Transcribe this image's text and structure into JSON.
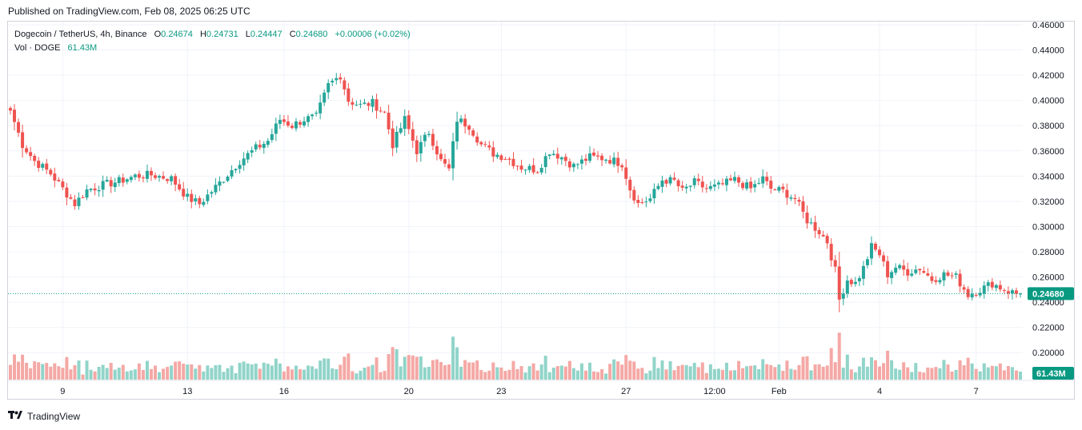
{
  "published": "Published on TradingView.com, Feb 08, 2025 06:25 UTC",
  "legend": {
    "symbol": "Dogecoin / TetherUS, 4h, Binance",
    "open_label": "O",
    "open": "0.24674",
    "high_label": "H",
    "high": "0.24731",
    "low_label": "L",
    "low": "0.24447",
    "close_label": "C",
    "close": "0.24680",
    "change": "+0.00006 (+0.02%)",
    "vol_label": "Vol · DOGE",
    "vol_value": "61.43M"
  },
  "brand": "TradingView",
  "colors": {
    "up": "#26a69a",
    "down": "#ef5350",
    "up_vol": "#91d4c9",
    "down_vol": "#f4a8a5",
    "grid": "#f0f3fa",
    "price_tag": "#089981"
  },
  "chart_data": {
    "type": "candlestick",
    "title": "Dogecoin / TetherUS, 4h, Binance",
    "ylim": [
      0.19,
      0.46
    ],
    "yticks": [
      "0.46000",
      "0.44000",
      "0.42000",
      "0.40000",
      "0.38000",
      "0.36000",
      "0.34000",
      "0.32000",
      "0.30000",
      "0.28000",
      "0.26000",
      "0.24000",
      "0.22000",
      "0.20000"
    ],
    "xticks": [
      {
        "label": "9",
        "index": 13
      },
      {
        "label": "13",
        "index": 44
      },
      {
        "label": "16",
        "index": 68
      },
      {
        "label": "20",
        "index": 99
      },
      {
        "label": "23",
        "index": 122
      },
      {
        "label": "27",
        "index": 153
      },
      {
        "label": "12:00",
        "index": 175
      },
      {
        "label": "Feb",
        "index": 191
      },
      {
        "label": "4",
        "index": 216
      },
      {
        "label": "7",
        "index": 240
      }
    ],
    "last_price": "0.24680",
    "last_volume": "61.43M",
    "anchors": [
      [
        0,
        0.392
      ],
      [
        3,
        0.365
      ],
      [
        6,
        0.352
      ],
      [
        10,
        0.342
      ],
      [
        13,
        0.33
      ],
      [
        16,
        0.318
      ],
      [
        19,
        0.329
      ],
      [
        23,
        0.333
      ],
      [
        27,
        0.336
      ],
      [
        31,
        0.34
      ],
      [
        35,
        0.341
      ],
      [
        40,
        0.338
      ],
      [
        44,
        0.323
      ],
      [
        47,
        0.318
      ],
      [
        50,
        0.328
      ],
      [
        53,
        0.338
      ],
      [
        57,
        0.352
      ],
      [
        61,
        0.362
      ],
      [
        64,
        0.368
      ],
      [
        67,
        0.385
      ],
      [
        70,
        0.38
      ],
      [
        73,
        0.385
      ],
      [
        76,
        0.387
      ],
      [
        79,
        0.412
      ],
      [
        82,
        0.42
      ],
      [
        84,
        0.4
      ],
      [
        87,
        0.396
      ],
      [
        90,
        0.398
      ],
      [
        93,
        0.39
      ],
      [
        95,
        0.365
      ],
      [
        98,
        0.385
      ],
      [
        101,
        0.36
      ],
      [
        104,
        0.375
      ],
      [
        107,
        0.352
      ],
      [
        109,
        0.345
      ],
      [
        111,
        0.385
      ],
      [
        114,
        0.38
      ],
      [
        117,
        0.365
      ],
      [
        120,
        0.358
      ],
      [
        123,
        0.355
      ],
      [
        127,
        0.347
      ],
      [
        131,
        0.345
      ],
      [
        134,
        0.36
      ],
      [
        137,
        0.355
      ],
      [
        140,
        0.348
      ],
      [
        144,
        0.355
      ],
      [
        148,
        0.354
      ],
      [
        152,
        0.35
      ],
      [
        154,
        0.33
      ],
      [
        156,
        0.318
      ],
      [
        159,
        0.322
      ],
      [
        162,
        0.337
      ],
      [
        165,
        0.336
      ],
      [
        167,
        0.328
      ],
      [
        170,
        0.335
      ],
      [
        173,
        0.33
      ],
      [
        176,
        0.332
      ],
      [
        180,
        0.337
      ],
      [
        184,
        0.33
      ],
      [
        187,
        0.338
      ],
      [
        189,
        0.33
      ],
      [
        192,
        0.328
      ],
      [
        195,
        0.322
      ],
      [
        198,
        0.305
      ],
      [
        201,
        0.296
      ],
      [
        203,
        0.288
      ],
      [
        205,
        0.265
      ],
      [
        206,
        0.242
      ],
      [
        208,
        0.258
      ],
      [
        210,
        0.255
      ],
      [
        212,
        0.267
      ],
      [
        214,
        0.284
      ],
      [
        216,
        0.278
      ],
      [
        218,
        0.262
      ],
      [
        220,
        0.268
      ],
      [
        223,
        0.264
      ],
      [
        226,
        0.267
      ],
      [
        229,
        0.258
      ],
      [
        232,
        0.262
      ],
      [
        235,
        0.26
      ],
      [
        238,
        0.246
      ],
      [
        241,
        0.25
      ],
      [
        244,
        0.255
      ],
      [
        247,
        0.25
      ],
      [
        250,
        0.2468
      ]
    ]
  }
}
